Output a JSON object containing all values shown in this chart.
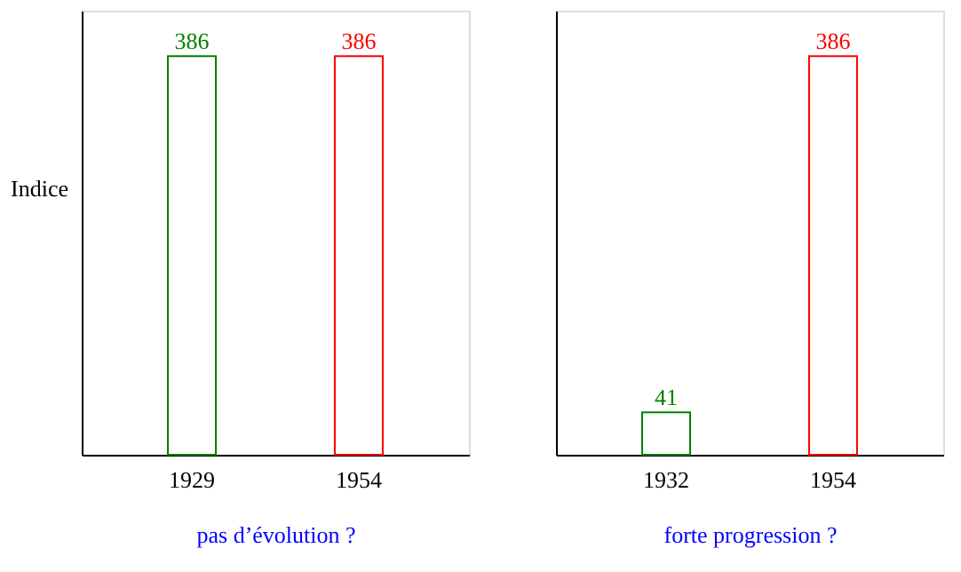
{
  "chart_data": [
    {
      "type": "bar",
      "categories": [
        "1929",
        "1954"
      ],
      "values": [
        386,
        386
      ],
      "colors": [
        "#008000",
        "#ff0000"
      ],
      "ylim": [
        0,
        430
      ],
      "data_labels": true,
      "xlabel": "pas d’évolution ?",
      "ylabel": "Indice",
      "tick_labels": "x"
    },
    {
      "type": "bar",
      "categories": [
        "1932",
        "1954"
      ],
      "values": [
        41,
        386
      ],
      "colors": [
        "#008000",
        "#ff0000"
      ],
      "ylim": [
        0,
        430
      ],
      "data_labels": true,
      "xlabel": "forte progression ?",
      "tick_labels": "x"
    }
  ]
}
